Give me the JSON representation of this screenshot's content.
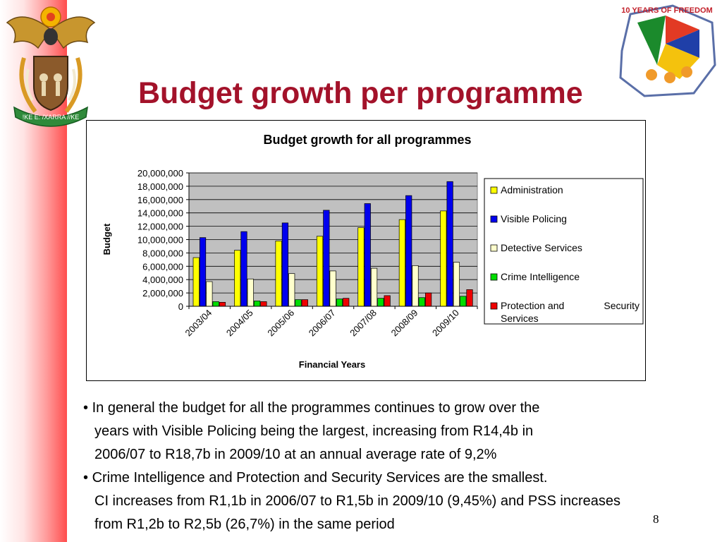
{
  "slide": {
    "title": "Budget growth per programme",
    "page_number": "8",
    "logo_motto": "!KE E: /XARRA //KE",
    "emblem_text": "10 YEARS OF FREEDOM"
  },
  "bullets": [
    {
      "bullet": "•",
      "lines": [
        "In general the budget for all the programmes continues to grow over the",
        "years with Visible Policing being the largest, increasing from R14,4b in",
        "2006/07 to R18,7b in 2009/10 at an annual average rate of 9,2%"
      ]
    },
    {
      "bullet": "•",
      "lines": [
        "Crime Intelligence and Protection and Security Services are the smallest.",
        "CI increases from R1,1b in 2006/07 to R1,5b in 2009/10 (9,45%) and PSS increases",
        "from R1,2b to R2,5b (26,7%) in the same period"
      ]
    }
  ],
  "chart_data": {
    "type": "bar",
    "title": "Budget growth for all programmes",
    "xlabel": "Financial Years",
    "ylabel": "Budget",
    "ylim": [
      0,
      20000000
    ],
    "yticks": [
      0,
      2000000,
      4000000,
      6000000,
      8000000,
      10000000,
      12000000,
      14000000,
      16000000,
      18000000,
      20000000
    ],
    "ytick_labels": [
      "0",
      "2,000,000",
      "4,000,000",
      "6,000,000",
      "8,000,000",
      "10,000,000",
      "12,000,000",
      "14,000,000",
      "16,000,000",
      "18,000,000",
      "20,000,000"
    ],
    "categories": [
      "2003/04",
      "2004/05",
      "2005/06",
      "2006/07",
      "2007/08",
      "2008/09",
      "2009/10"
    ],
    "grid": true,
    "legend_position": "right",
    "series": [
      {
        "name": "Administration",
        "color": "#ffff00",
        "values": [
          7300000,
          8400000,
          9800000,
          10500000,
          11800000,
          13000000,
          14300000
        ]
      },
      {
        "name": "Visible Policing",
        "color": "#0000ee",
        "values": [
          10300000,
          11200000,
          12500000,
          14400000,
          15400000,
          16600000,
          18700000
        ]
      },
      {
        "name": "Detective Services",
        "color": "#ffffcc",
        "values": [
          3700000,
          4100000,
          4900000,
          5300000,
          5700000,
          6100000,
          6600000
        ]
      },
      {
        "name": "Crime Intelligence",
        "color": "#00dd00",
        "values": [
          700000,
          800000,
          1000000,
          1100000,
          1200000,
          1300000,
          1500000
        ]
      },
      {
        "name": "Protection and Security Services",
        "color": "#ee0000",
        "values": [
          600000,
          700000,
          1000000,
          1200000,
          1600000,
          2000000,
          2500000
        ]
      }
    ]
  }
}
